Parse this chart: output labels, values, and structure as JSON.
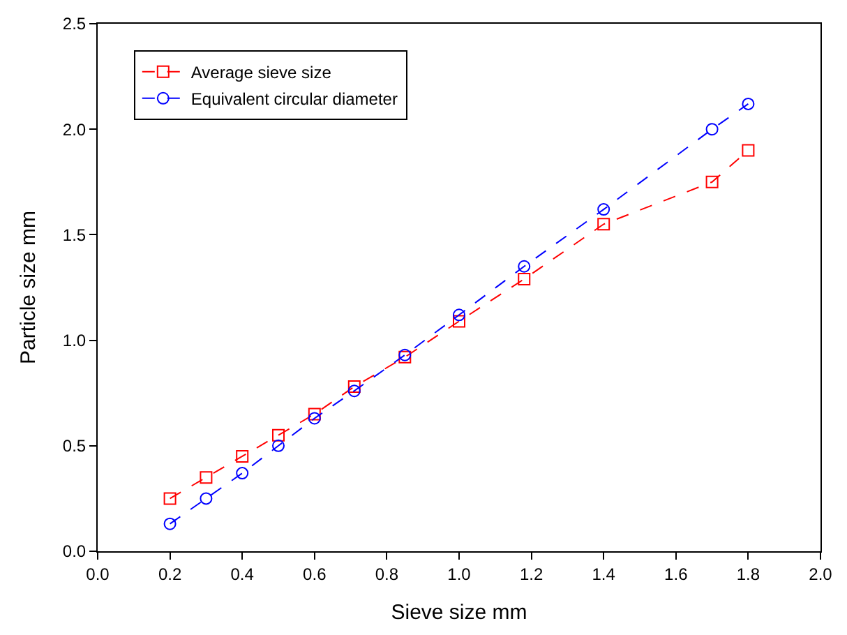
{
  "chart_data": {
    "type": "line",
    "xlabel": "Sieve size mm",
    "ylabel": "Particle size mm",
    "x": [
      0.2,
      0.3,
      0.4,
      0.5,
      0.6,
      0.71,
      0.85,
      1.0,
      1.18,
      1.4,
      1.7,
      1.8
    ],
    "series": [
      {
        "name": "Average sieve size",
        "color": "#ff0000",
        "marker": "square",
        "values": [
          0.25,
          0.35,
          0.45,
          0.55,
          0.65,
          0.78,
          0.92,
          1.09,
          1.29,
          1.55,
          1.75,
          1.9
        ]
      },
      {
        "name": "Equivalent circular diameter",
        "color": "#0000ff",
        "marker": "circle",
        "values": [
          0.13,
          0.25,
          0.37,
          0.5,
          0.63,
          0.76,
          0.93,
          1.12,
          1.35,
          1.62,
          2.0,
          2.12
        ]
      }
    ],
    "xlim": [
      0,
      2.0
    ],
    "xticks": [
      {
        "value": 0,
        "label": "0.0"
      },
      0.2,
      0.4,
      0.6,
      0.8,
      {
        "value": 1,
        "label": "1.0"
      },
      1.2,
      1.4,
      1.6,
      1.8,
      {
        "value": 2,
        "label": "2.0"
      }
    ],
    "ylim": [
      0,
      2.5
    ],
    "yticks": [
      {
        "value": 0,
        "label": "0.0"
      },
      0.5,
      {
        "value": 1,
        "label": "1.0"
      },
      1.5,
      {
        "value": 2,
        "label": "2.0"
      },
      2.5
    ],
    "line_style": "dashed",
    "legend": "top left"
  }
}
